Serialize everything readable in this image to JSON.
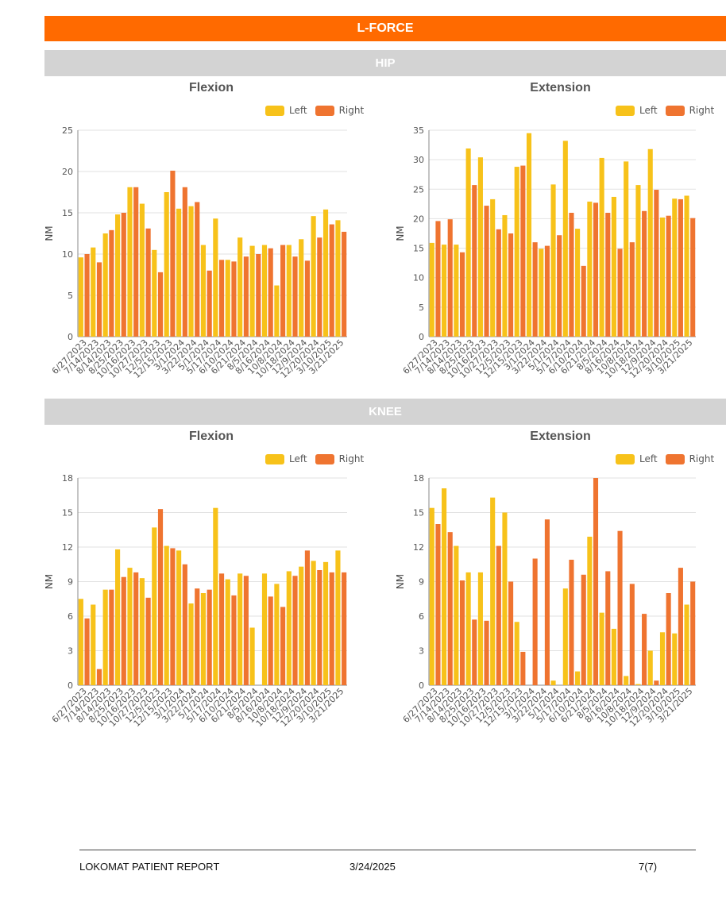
{
  "header": {
    "title": "L-FORCE"
  },
  "sections": [
    {
      "label": "HIP"
    },
    {
      "label": "KNEE"
    }
  ],
  "colors": {
    "left": "#f7c21a",
    "right": "#ef7430",
    "banner": "#ff6a00",
    "section": "#d3d3d3"
  },
  "legend": {
    "left": "Left",
    "right": "Right"
  },
  "footer": {
    "report": "LOKOMAT PATIENT REPORT",
    "date": "3/24/2025",
    "page": "7(7)"
  },
  "chart_data": [
    {
      "id": "hip-flexion",
      "type": "bar",
      "title": "Flexion",
      "ylabel": "NM",
      "ylim": [
        0,
        25
      ],
      "yticks": [
        0,
        5,
        10,
        15,
        20,
        25
      ],
      "tick_labels": [
        "6/27/2023",
        "7/14/2023",
        "8/14/2023",
        "8/25/2023",
        "10/16/2023",
        "10/27/2023",
        "12/5/2023",
        "12/15/2023",
        "3/1/2024",
        "3/22/2024",
        "5/1/2024",
        "5/17/2024",
        "6/10/2024",
        "6/21/2024",
        "8/5/2024",
        "8/16/2024",
        "10/8/2024",
        "10/18/2024",
        "12/9/2024",
        "12/20/2024",
        "3/10/2025",
        "3/21/2025"
      ],
      "series": [
        {
          "name": "Left",
          "values": [
            9.6,
            10.8,
            12.5,
            14.8,
            18.1,
            16.1,
            10.5,
            17.5,
            15.5,
            15.8,
            11.1,
            14.3,
            9.3,
            12.0,
            11.0,
            11.1,
            6.2,
            11.1,
            11.8,
            14.6,
            15.4,
            14.1
          ]
        },
        {
          "name": "Right",
          "values": [
            10.0,
            9.0,
            12.9,
            15.0,
            18.1,
            13.1,
            7.8,
            20.1,
            18.1,
            16.3,
            8.0,
            9.3,
            9.1,
            9.7,
            10.0,
            10.7,
            11.1,
            9.7,
            9.2,
            12.0,
            13.6,
            12.7
          ]
        }
      ]
    },
    {
      "id": "hip-extension",
      "type": "bar",
      "title": "Extension",
      "ylabel": "NM",
      "ylim": [
        0,
        35
      ],
      "yticks": [
        0,
        5,
        10,
        15,
        20,
        25,
        30,
        35
      ],
      "tick_labels": [
        "6/27/2023",
        "7/14/2023",
        "8/14/2023",
        "8/25/2023",
        "10/16/2023",
        "10/27/2023",
        "12/5/2023",
        "12/15/2023",
        "3/1/2024",
        "3/22/2024",
        "5/1/2024",
        "5/17/2024",
        "6/10/2024",
        "6/21/2024",
        "8/5/2024",
        "8/16/2024",
        "10/8/2024",
        "10/18/2024",
        "12/9/2024",
        "12/20/2024",
        "3/10/2025",
        "3/21/2025"
      ],
      "series": [
        {
          "name": "Left",
          "values": [
            15.9,
            15.6,
            15.6,
            31.9,
            30.4,
            23.3,
            20.6,
            28.8,
            34.5,
            14.9,
            25.8,
            33.2,
            18.3,
            22.9,
            30.3,
            23.7,
            29.7,
            25.7,
            31.8,
            20.2,
            23.4,
            23.9
          ]
        },
        {
          "name": "Right",
          "values": [
            19.6,
            19.9,
            14.3,
            25.7,
            22.2,
            18.2,
            17.5,
            29.0,
            16.0,
            15.4,
            17.2,
            21.0,
            12.0,
            22.7,
            21.0,
            14.9,
            16.0,
            21.3,
            24.9,
            20.5,
            23.3,
            20.1
          ]
        }
      ]
    },
    {
      "id": "knee-flexion",
      "type": "bar",
      "title": "Flexion",
      "ylabel": "NM",
      "ylim": [
        0,
        18
      ],
      "yticks": [
        0,
        3,
        6,
        9,
        12,
        15,
        18
      ],
      "tick_labels": [
        "6/27/2023",
        "7/14/2023",
        "8/14/2023",
        "8/25/2023",
        "10/16/2023",
        "10/27/2023",
        "12/5/2023",
        "12/15/2023",
        "3/1/2024",
        "3/22/2024",
        "5/1/2024",
        "5/17/2024",
        "6/10/2024",
        "6/21/2024",
        "8/5/2024",
        "8/16/2024",
        "10/8/2024",
        "10/18/2024",
        "12/9/2024",
        "12/20/2024",
        "3/10/2025",
        "3/21/2025"
      ],
      "series": [
        {
          "name": "Left",
          "values": [
            7.5,
            7.0,
            8.3,
            11.8,
            10.2,
            9.3,
            13.7,
            12.1,
            11.7,
            7.1,
            8.0,
            15.4,
            9.2,
            9.7,
            5.0,
            9.7,
            8.8,
            9.9,
            10.3,
            10.8,
            10.7,
            11.7
          ]
        },
        {
          "name": "Right",
          "values": [
            5.8,
            1.4,
            8.3,
            9.4,
            9.8,
            7.6,
            15.3,
            11.9,
            10.5,
            8.4,
            8.3,
            9.7,
            7.8,
            9.5,
            0.0,
            7.7,
            6.8,
            9.5,
            11.7,
            10.0,
            9.8,
            9.8
          ]
        }
      ]
    },
    {
      "id": "knee-extension",
      "type": "bar",
      "title": "Extension",
      "ylabel": "NM",
      "ylim": [
        0,
        18
      ],
      "yticks": [
        0,
        3,
        6,
        9,
        12,
        15,
        18
      ],
      "tick_labels": [
        "6/27/2023",
        "7/14/2023",
        "8/14/2023",
        "8/25/2023",
        "10/16/2023",
        "10/27/2023",
        "12/5/2023",
        "12/15/2023",
        "3/1/2024",
        "3/22/2024",
        "5/1/2024",
        "5/17/2024",
        "6/10/2024",
        "6/21/2024",
        "8/5/2024",
        "8/16/2024",
        "10/8/2024",
        "10/18/2024",
        "12/9/2024",
        "12/20/2024",
        "3/10/2025",
        "3/21/2025"
      ],
      "series": [
        {
          "name": "Left",
          "values": [
            15.4,
            17.1,
            12.1,
            9.8,
            9.8,
            16.3,
            15.0,
            5.5,
            0.0,
            0.0,
            0.4,
            8.4,
            1.2,
            12.9,
            6.3,
            4.9,
            0.8,
            0.1,
            3.0,
            4.6,
            4.5,
            7.0
          ]
        },
        {
          "name": "Right",
          "values": [
            14.0,
            13.3,
            9.1,
            5.7,
            5.6,
            12.1,
            9.0,
            2.9,
            11.0,
            14.4,
            0.0,
            10.9,
            9.6,
            18.0,
            9.9,
            13.4,
            8.8,
            6.2,
            0.4,
            8.0,
            10.2,
            9.0
          ]
        }
      ]
    }
  ]
}
